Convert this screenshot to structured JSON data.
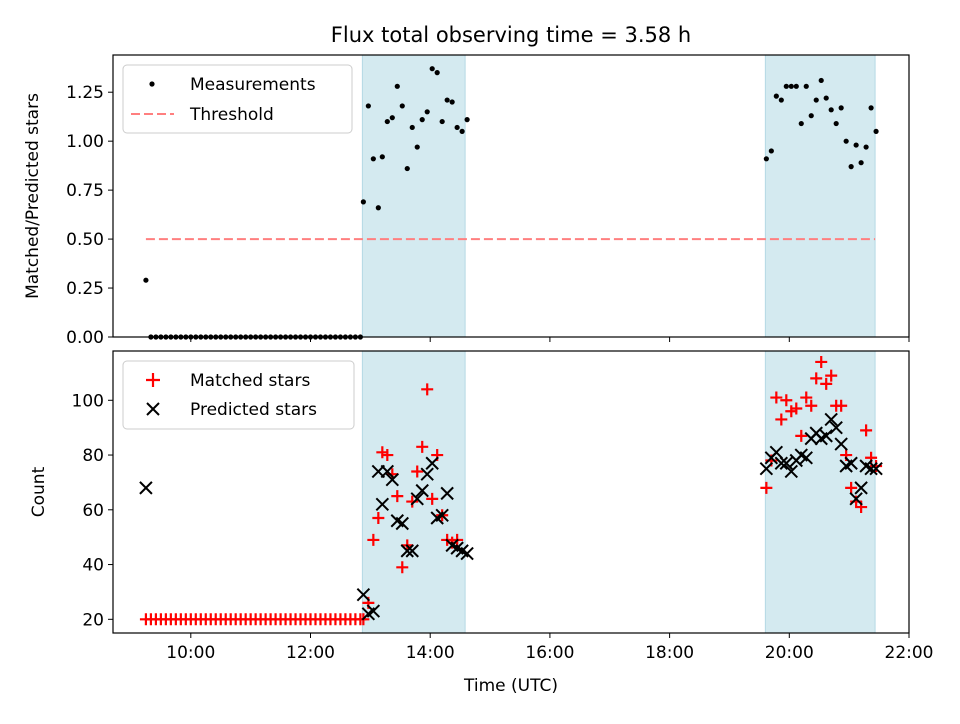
{
  "chart_data": [
    {
      "type": "scatter",
      "title": "Flux total observing time = 3.58 h",
      "xlabel": "",
      "ylabel": "Matched/Predicted stars",
      "xlim": [
        "08:42",
        "22:00"
      ],
      "ylim": [
        0,
        1.44
      ],
      "yticks": [
        "0.00",
        "0.25",
        "0.50",
        "0.75",
        "1.00",
        "1.25"
      ],
      "legend_position": "upper left",
      "shaded_intervals": [
        [
          "12:52",
          "14:35"
        ],
        [
          "19:36",
          "21:26"
        ]
      ],
      "shade_color": "#d4eaf0",
      "series": [
        {
          "name": "Measurements",
          "marker": "dot",
          "color": "#000000",
          "points": [
            [
              "09:15",
              0.29
            ],
            [
              "09:20",
              0.0
            ],
            [
              "09:25",
              0.0
            ],
            [
              "09:30",
              0.0
            ],
            [
              "09:35",
              0.0
            ],
            [
              "09:40",
              0.0
            ],
            [
              "09:45",
              0.0
            ],
            [
              "09:50",
              0.0
            ],
            [
              "09:55",
              0.0
            ],
            [
              "10:00",
              0.0
            ],
            [
              "10:05",
              0.0
            ],
            [
              "10:10",
              0.0
            ],
            [
              "10:15",
              0.0
            ],
            [
              "10:20",
              0.0
            ],
            [
              "10:25",
              0.0
            ],
            [
              "10:30",
              0.0
            ],
            [
              "10:35",
              0.0
            ],
            [
              "10:40",
              0.0
            ],
            [
              "10:45",
              0.0
            ],
            [
              "10:50",
              0.0
            ],
            [
              "10:55",
              0.0
            ],
            [
              "11:00",
              0.0
            ],
            [
              "11:05",
              0.0
            ],
            [
              "11:10",
              0.0
            ],
            [
              "11:15",
              0.0
            ],
            [
              "11:20",
              0.0
            ],
            [
              "11:25",
              0.0
            ],
            [
              "11:30",
              0.0
            ],
            [
              "11:35",
              0.0
            ],
            [
              "11:40",
              0.0
            ],
            [
              "11:45",
              0.0
            ],
            [
              "11:50",
              0.0
            ],
            [
              "11:55",
              0.0
            ],
            [
              "12:00",
              0.0
            ],
            [
              "12:05",
              0.0
            ],
            [
              "12:10",
              0.0
            ],
            [
              "12:15",
              0.0
            ],
            [
              "12:20",
              0.0
            ],
            [
              "12:25",
              0.0
            ],
            [
              "12:30",
              0.0
            ],
            [
              "12:35",
              0.0
            ],
            [
              "12:40",
              0.0
            ],
            [
              "12:45",
              0.0
            ],
            [
              "12:50",
              0.0
            ],
            [
              "12:53",
              0.69
            ],
            [
              "12:58",
              1.18
            ],
            [
              "13:03",
              0.91
            ],
            [
              "13:08",
              0.66
            ],
            [
              "13:12",
              0.92
            ],
            [
              "13:17",
              1.1
            ],
            [
              "13:22",
              1.12
            ],
            [
              "13:27",
              1.28
            ],
            [
              "13:32",
              1.18
            ],
            [
              "13:37",
              0.86
            ],
            [
              "13:42",
              1.07
            ],
            [
              "13:47",
              0.97
            ],
            [
              "13:52",
              1.11
            ],
            [
              "13:57",
              1.15
            ],
            [
              "14:02",
              1.37
            ],
            [
              "14:07",
              1.35
            ],
            [
              "14:12",
              1.1
            ],
            [
              "14:17",
              1.21
            ],
            [
              "14:22",
              1.2
            ],
            [
              "14:27",
              1.07
            ],
            [
              "14:32",
              1.05
            ],
            [
              "14:37",
              1.11
            ],
            [
              "19:37",
              0.91
            ],
            [
              "19:42",
              0.95
            ],
            [
              "19:47",
              1.23
            ],
            [
              "19:52",
              1.21
            ],
            [
              "19:57",
              1.28
            ],
            [
              "20:02",
              1.28
            ],
            [
              "20:07",
              1.28
            ],
            [
              "20:12",
              1.09
            ],
            [
              "20:17",
              1.28
            ],
            [
              "20:22",
              1.13
            ],
            [
              "20:27",
              1.21
            ],
            [
              "20:32",
              1.31
            ],
            [
              "20:37",
              1.22
            ],
            [
              "20:42",
              1.16
            ],
            [
              "20:47",
              1.09
            ],
            [
              "20:52",
              1.17
            ],
            [
              "20:57",
              1.0
            ],
            [
              "21:02",
              0.87
            ],
            [
              "21:07",
              0.98
            ],
            [
              "21:12",
              0.89
            ],
            [
              "21:17",
              0.97
            ],
            [
              "21:22",
              1.17
            ],
            [
              "21:27",
              1.05
            ]
          ]
        },
        {
          "name": "Threshold",
          "style": "dashed-line",
          "color": "#ff7f7f",
          "x": [
            "09:15",
            "21:26"
          ],
          "y": 0.5
        }
      ]
    },
    {
      "type": "scatter",
      "title": "",
      "xlabel": "Time (UTC)",
      "ylabel": "Count",
      "xlim": [
        "08:42",
        "22:00"
      ],
      "xticks": [
        "10:00",
        "12:00",
        "14:00",
        "16:00",
        "18:00",
        "20:00",
        "22:00"
      ],
      "ylim": [
        15,
        118
      ],
      "yticks": [
        "20",
        "40",
        "60",
        "80",
        "100"
      ],
      "legend_position": "upper left",
      "shaded_intervals": [
        [
          "12:52",
          "14:35"
        ],
        [
          "19:36",
          "21:26"
        ]
      ],
      "series": [
        {
          "name": "Matched stars",
          "marker": "plus",
          "color": "#ff0000",
          "points": [
            [
              "09:15",
              20
            ],
            [
              "09:20",
              20
            ],
            [
              "09:25",
              20
            ],
            [
              "09:30",
              20
            ],
            [
              "09:35",
              20
            ],
            [
              "09:40",
              20
            ],
            [
              "09:45",
              20
            ],
            [
              "09:50",
              20
            ],
            [
              "09:55",
              20
            ],
            [
              "10:00",
              20
            ],
            [
              "10:05",
              20
            ],
            [
              "10:10",
              20
            ],
            [
              "10:15",
              20
            ],
            [
              "10:20",
              20
            ],
            [
              "10:25",
              20
            ],
            [
              "10:30",
              20
            ],
            [
              "10:35",
              20
            ],
            [
              "10:40",
              20
            ],
            [
              "10:45",
              20
            ],
            [
              "10:50",
              20
            ],
            [
              "10:55",
              20
            ],
            [
              "11:00",
              20
            ],
            [
              "11:05",
              20
            ],
            [
              "11:10",
              20
            ],
            [
              "11:15",
              20
            ],
            [
              "11:20",
              20
            ],
            [
              "11:25",
              20
            ],
            [
              "11:30",
              20
            ],
            [
              "11:35",
              20
            ],
            [
              "11:40",
              20
            ],
            [
              "11:45",
              20
            ],
            [
              "11:50",
              20
            ],
            [
              "11:55",
              20
            ],
            [
              "12:00",
              20
            ],
            [
              "12:05",
              20
            ],
            [
              "12:10",
              20
            ],
            [
              "12:15",
              20
            ],
            [
              "12:20",
              20
            ],
            [
              "12:25",
              20
            ],
            [
              "12:30",
              20
            ],
            [
              "12:35",
              20
            ],
            [
              "12:40",
              20
            ],
            [
              "12:45",
              20
            ],
            [
              "12:50",
              20
            ],
            [
              "12:53",
              20
            ],
            [
              "12:58",
              26
            ],
            [
              "13:03",
              49
            ],
            [
              "13:08",
              57
            ],
            [
              "13:12",
              81
            ],
            [
              "13:17",
              80
            ],
            [
              "13:22",
              73
            ],
            [
              "13:27",
              65
            ],
            [
              "13:32",
              39
            ],
            [
              "13:37",
              47
            ],
            [
              "13:42",
              63
            ],
            [
              "13:47",
              74
            ],
            [
              "13:52",
              83
            ],
            [
              "13:57",
              104
            ],
            [
              "14:02",
              64
            ],
            [
              "14:07",
              80
            ],
            [
              "14:12",
              58
            ],
            [
              "14:17",
              49
            ],
            [
              "14:22",
              48
            ],
            [
              "14:27",
              49
            ],
            [
              "19:37",
              68
            ],
            [
              "19:42",
              78
            ],
            [
              "19:47",
              101
            ],
            [
              "19:52",
              93
            ],
            [
              "19:57",
              100
            ],
            [
              "20:02",
              96
            ],
            [
              "20:07",
              97
            ],
            [
              "20:12",
              87
            ],
            [
              "20:17",
              101
            ],
            [
              "20:22",
              98
            ],
            [
              "20:27",
              108
            ],
            [
              "20:32",
              114
            ],
            [
              "20:37",
              106
            ],
            [
              "20:42",
              109
            ],
            [
              "20:47",
              98
            ],
            [
              "20:52",
              98
            ],
            [
              "20:57",
              80
            ],
            [
              "21:02",
              68
            ],
            [
              "21:07",
              63
            ],
            [
              "21:12",
              61
            ],
            [
              "21:17",
              89
            ],
            [
              "21:22",
              79
            ],
            [
              "21:27",
              76
            ]
          ]
        },
        {
          "name": "Predicted stars",
          "marker": "x",
          "color": "#000000",
          "points": [
            [
              "09:15",
              68
            ],
            [
              "12:53",
              29
            ],
            [
              "12:58",
              22
            ],
            [
              "13:03",
              23
            ],
            [
              "13:08",
              74
            ],
            [
              "13:12",
              62
            ],
            [
              "13:17",
              74
            ],
            [
              "13:22",
              71
            ],
            [
              "13:27",
              56
            ],
            [
              "13:32",
              55
            ],
            [
              "13:37",
              45
            ],
            [
              "13:42",
              45
            ],
            [
              "13:47",
              64
            ],
            [
              "13:52",
              67
            ],
            [
              "13:57",
              73
            ],
            [
              "14:02",
              77
            ],
            [
              "14:07",
              57
            ],
            [
              "14:12",
              58
            ],
            [
              "14:17",
              66
            ],
            [
              "14:22",
              47
            ],
            [
              "14:27",
              46
            ],
            [
              "14:32",
              45
            ],
            [
              "14:37",
              44
            ],
            [
              "19:37",
              75
            ],
            [
              "19:42",
              79
            ],
            [
              "19:47",
              81
            ],
            [
              "19:52",
              77
            ],
            [
              "19:57",
              77
            ],
            [
              "20:02",
              74
            ],
            [
              "20:07",
              78
            ],
            [
              "20:12",
              80
            ],
            [
              "20:17",
              79
            ],
            [
              "20:22",
              86
            ],
            [
              "20:27",
              88
            ],
            [
              "20:32",
              86
            ],
            [
              "20:37",
              87
            ],
            [
              "20:42",
              93
            ],
            [
              "20:47",
              90
            ],
            [
              "20:52",
              84
            ],
            [
              "20:57",
              76
            ],
            [
              "21:02",
              77
            ],
            [
              "21:07",
              64
            ],
            [
              "21:12",
              68
            ],
            [
              "21:17",
              76
            ],
            [
              "21:22",
              75
            ],
            [
              "21:27",
              75
            ]
          ]
        }
      ]
    }
  ]
}
